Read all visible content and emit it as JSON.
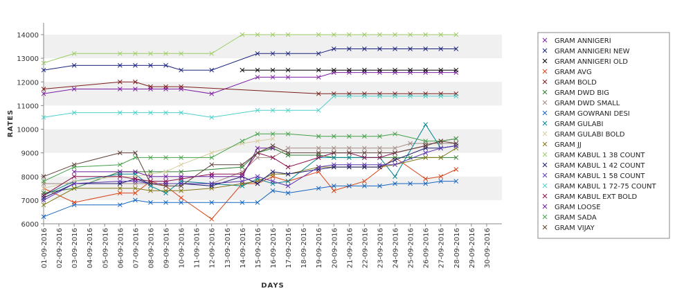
{
  "chart_data": {
    "type": "line",
    "title": "",
    "xlabel": "DAYS",
    "ylabel": "RATES",
    "ylim": [
      6000,
      14000
    ],
    "yticks": [
      6000,
      7000,
      8000,
      9000,
      10000,
      11000,
      12000,
      13000,
      14000
    ],
    "grid": false,
    "alternating_bands": true,
    "legend_position": "right",
    "categories": [
      "01-09-2016",
      "02-09-2016",
      "03-09-2016",
      "04-09-2016",
      "05-09-2016",
      "06-09-2016",
      "07-09-2016",
      "08-09-2016",
      "09-09-2016",
      "10-09-2016",
      "11-09-2016",
      "12-09-2016",
      "13-09-2016",
      "14-09-2016",
      "15-09-2016",
      "16-09-2016",
      "17-09-2016",
      "18-09-2016",
      "19-09-2016",
      "20-09-2016",
      "21-09-2016",
      "22-09-2016",
      "23-09-2016",
      "24-09-2016",
      "25-09-2016",
      "26-09-2016",
      "27-09-2016",
      "28-09-2016",
      "29-09-2016",
      "30-09-2016"
    ],
    "series": [
      {
        "name": "GRAM ANNIGERI",
        "color": "#7b1fa2",
        "values": [
          11500,
          null,
          11700,
          null,
          null,
          11700,
          11700,
          11700,
          11700,
          11700,
          null,
          11500,
          null,
          null,
          12200,
          12200,
          12200,
          null,
          12200,
          12400,
          12400,
          12400,
          12400,
          12400,
          12400,
          12400,
          12400,
          12400,
          null,
          null
        ]
      },
      {
        "name": "GRAM ANNIGERI NEW",
        "color": "#1a237e",
        "values": [
          12500,
          null,
          12700,
          null,
          null,
          12700,
          12700,
          12700,
          12700,
          12500,
          null,
          12500,
          null,
          null,
          13200,
          13200,
          13200,
          null,
          13200,
          13400,
          13400,
          13400,
          13400,
          13400,
          13400,
          13400,
          13400,
          13400,
          null,
          null
        ]
      },
      {
        "name": "GRAM ANNIGERI OLD",
        "color": "#000000",
        "values": [
          null,
          null,
          null,
          null,
          null,
          null,
          null,
          null,
          null,
          null,
          null,
          null,
          null,
          12500,
          12500,
          12500,
          12500,
          null,
          12500,
          12500,
          12500,
          12500,
          12500,
          12500,
          12500,
          12500,
          12500,
          12500,
          null,
          null
        ]
      },
      {
        "name": "GRAM AVG",
        "color": "#d84315",
        "values": [
          7500,
          null,
          6900,
          null,
          null,
          7300,
          7300,
          7800,
          7600,
          7100,
          null,
          6200,
          null,
          7700,
          7700,
          8000,
          7800,
          null,
          8200,
          7400,
          7600,
          7800,
          null,
          8800,
          null,
          7900,
          8000,
          8300,
          null,
          null
        ]
      },
      {
        "name": "GRAM BOLD",
        "color": "#7b1c1c",
        "values": [
          11700,
          null,
          null,
          null,
          null,
          12000,
          12000,
          11800,
          11800,
          11800,
          null,
          null,
          null,
          null,
          null,
          null,
          null,
          null,
          11500,
          11500,
          11500,
          11500,
          11500,
          11500,
          11500,
          11500,
          11500,
          11500,
          null,
          null
        ]
      },
      {
        "name": "GRAM DWD BIG",
        "color": "#2e7d32",
        "values": [
          7300,
          null,
          7500,
          null,
          null,
          8200,
          8200,
          8200,
          8200,
          8200,
          null,
          null,
          null,
          8400,
          9000,
          9200,
          8900,
          null,
          8900,
          8800,
          8800,
          8800,
          8800,
          8800,
          8800,
          8800,
          8800,
          8800,
          null,
          null
        ]
      },
      {
        "name": "GRAM DWD SMALL",
        "color": "#a1887f",
        "values": [
          7700,
          null,
          7700,
          null,
          null,
          7700,
          7700,
          7700,
          7700,
          7700,
          null,
          7700,
          null,
          8200,
          8800,
          8800,
          9200,
          null,
          9200,
          9200,
          9200,
          9200,
          9200,
          9200,
          9400,
          9400,
          9400,
          9400,
          null,
          null
        ]
      },
      {
        "name": "GRAM GOWRANI DESI",
        "color": "#1565c0",
        "values": [
          6300,
          null,
          6800,
          null,
          null,
          6800,
          7000,
          6900,
          6900,
          6900,
          null,
          6900,
          null,
          6900,
          6900,
          7400,
          7300,
          null,
          7500,
          7600,
          7600,
          7600,
          7600,
          7700,
          7700,
          7700,
          7800,
          7800,
          null,
          null
        ]
      },
      {
        "name": "GRAM GULABI",
        "color": "#00838f",
        "values": [
          7200,
          null,
          7800,
          null,
          null,
          8100,
          8100,
          7600,
          7300,
          7800,
          null,
          7700,
          null,
          7600,
          7900,
          7700,
          7800,
          null,
          8800,
          8800,
          8800,
          8800,
          8800,
          8000,
          null,
          10200,
          9200,
          9300,
          null,
          null
        ]
      },
      {
        "name": "GRAM GULABI BOLD",
        "color": "#d7cca0",
        "values": [
          7500,
          null,
          7800,
          null,
          null,
          8000,
          8000,
          8100,
          8200,
          8500,
          null,
          9000,
          null,
          9400,
          9500,
          9600,
          null,
          null,
          null,
          null,
          null,
          null,
          null,
          null,
          null,
          null,
          null,
          null,
          null,
          null
        ]
      },
      {
        "name": "GRAM JJ",
        "color": "#827717",
        "values": [
          6800,
          null,
          7500,
          null,
          null,
          7500,
          7500,
          7400,
          7400,
          7400,
          null,
          7500,
          null,
          7700,
          7800,
          8100,
          8100,
          null,
          8400,
          8400,
          8400,
          8400,
          8400,
          8500,
          null,
          8800,
          8800,
          9200,
          null,
          null
        ]
      },
      {
        "name": "GRAM KABUL 1 38 COUNT",
        "color": "#9ccc65",
        "values": [
          12800,
          null,
          13200,
          null,
          null,
          13200,
          13200,
          13200,
          13200,
          13200,
          null,
          13200,
          null,
          14000,
          14000,
          14000,
          14000,
          null,
          14000,
          14000,
          14000,
          14000,
          14000,
          14000,
          14000,
          14000,
          14000,
          14000,
          null,
          null
        ]
      },
      {
        "name": "GRAM KABUL 1 42 COUNT",
        "color": "#1a1a6e",
        "values": [
          7100,
          null,
          7700,
          null,
          null,
          7700,
          7900,
          7700,
          7700,
          7700,
          null,
          7600,
          null,
          8000,
          7700,
          8200,
          8100,
          null,
          8300,
          8400,
          8400,
          8400,
          8400,
          8700,
          null,
          9200,
          9200,
          9300,
          null,
          null
        ]
      },
      {
        "name": "GRAM KABUL 1 58 COUNT",
        "color": "#5e35b1",
        "values": [
          7000,
          null,
          7700,
          null,
          null,
          7800,
          7800,
          7700,
          7700,
          7700,
          null,
          7700,
          null,
          7800,
          8000,
          7800,
          7600,
          null,
          8400,
          8500,
          8500,
          8500,
          8500,
          8500,
          null,
          9000,
          9200,
          9300,
          null,
          null
        ]
      },
      {
        "name": "GRAM KABUL 1 72-75 COUNT",
        "color": "#4dd0c8",
        "values": [
          10500,
          null,
          10700,
          null,
          null,
          10700,
          10700,
          10700,
          10700,
          10700,
          null,
          10500,
          null,
          null,
          10800,
          10800,
          10800,
          null,
          10800,
          11400,
          11400,
          11400,
          11400,
          11400,
          11400,
          11400,
          11400,
          11400,
          null,
          null
        ]
      },
      {
        "name": "GRAM KABUL EXT BOLD",
        "color": "#880e4f",
        "values": [
          7200,
          null,
          8000,
          null,
          null,
          8000,
          7900,
          7800,
          7800,
          7900,
          null,
          8100,
          null,
          8100,
          9000,
          8800,
          8400,
          null,
          8800,
          9000,
          9000,
          8800,
          8800,
          9000,
          null,
          9300,
          9500,
          9600,
          null,
          null
        ]
      },
      {
        "name": "GRAM LOOSE",
        "color": "#6a1b9a",
        "values": [
          null,
          null,
          8200,
          null,
          null,
          8200,
          8200,
          8000,
          8000,
          8000,
          null,
          8000,
          null,
          8000,
          9200,
          9200,
          null,
          null,
          null,
          null,
          null,
          null,
          null,
          null,
          null,
          null,
          null,
          null,
          null,
          null
        ]
      },
      {
        "name": "GRAM SADA",
        "color": "#43a047",
        "values": [
          7800,
          null,
          8400,
          null,
          null,
          8500,
          8800,
          8800,
          8800,
          8800,
          null,
          8800,
          null,
          9500,
          9800,
          9800,
          9800,
          null,
          9700,
          9700,
          9700,
          9700,
          9700,
          9800,
          null,
          9500,
          9500,
          9600,
          null,
          null
        ]
      },
      {
        "name": "GRAM VIJAY",
        "color": "#5d4037",
        "values": [
          8000,
          null,
          8500,
          null,
          null,
          9000,
          9000,
          7700,
          7600,
          7600,
          null,
          8500,
          null,
          8500,
          9000,
          9300,
          9000,
          null,
          9000,
          9000,
          9000,
          9000,
          9000,
          9000,
          null,
          9300,
          9500,
          9400,
          null,
          null
        ]
      }
    ]
  }
}
